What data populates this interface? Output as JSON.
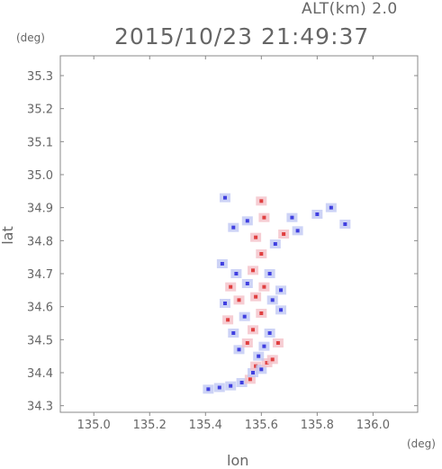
{
  "header": {
    "altitude_label": "ALT(km) 2.0",
    "timestamp": "2015/10/23 21:49:37"
  },
  "chart_data": {
    "type": "heatmap",
    "title": "2015/10/23 21:49:37",
    "subtitle": "ALT(km) 2.0",
    "xlabel": "lon",
    "ylabel": "lat",
    "x_unit": "(deg)",
    "y_unit": "(deg)",
    "xlim": [
      134.88,
      136.16
    ],
    "ylim": [
      34.28,
      35.36
    ],
    "x_ticks": [
      "135.0",
      "135.2",
      "135.4",
      "135.6",
      "135.8",
      "136.0"
    ],
    "y_ticks": [
      "34.3",
      "34.4",
      "34.5",
      "34.6",
      "34.7",
      "34.8",
      "34.9",
      "35.0",
      "35.1",
      "35.2",
      "35.3"
    ],
    "grid": false,
    "colors": {
      "positive": "#e04040",
      "negative": "#4040e0",
      "faint_positive": "#f4c0c8",
      "faint_negative": "#c0c8f4"
    },
    "cells": [
      {
        "lon": 135.41,
        "lat": 34.35,
        "v": -1
      },
      {
        "lon": 135.45,
        "lat": 34.355,
        "v": -1
      },
      {
        "lon": 135.49,
        "lat": 34.36,
        "v": -1
      },
      {
        "lon": 135.53,
        "lat": 34.37,
        "v": -1
      },
      {
        "lon": 135.56,
        "lat": 34.38,
        "v": 1
      },
      {
        "lon": 135.57,
        "lat": 34.4,
        "v": -1
      },
      {
        "lon": 135.58,
        "lat": 34.42,
        "v": 1
      },
      {
        "lon": 135.6,
        "lat": 34.41,
        "v": -1
      },
      {
        "lon": 135.62,
        "lat": 34.43,
        "v": 1
      },
      {
        "lon": 135.59,
        "lat": 34.45,
        "v": -1
      },
      {
        "lon": 135.64,
        "lat": 34.44,
        "v": 1
      },
      {
        "lon": 135.52,
        "lat": 34.47,
        "v": -1
      },
      {
        "lon": 135.55,
        "lat": 34.49,
        "v": 1
      },
      {
        "lon": 135.61,
        "lat": 34.48,
        "v": -1
      },
      {
        "lon": 135.66,
        "lat": 34.49,
        "v": 1
      },
      {
        "lon": 135.5,
        "lat": 34.52,
        "v": -1
      },
      {
        "lon": 135.57,
        "lat": 34.53,
        "v": 1
      },
      {
        "lon": 135.63,
        "lat": 34.52,
        "v": -1
      },
      {
        "lon": 135.48,
        "lat": 34.56,
        "v": 1
      },
      {
        "lon": 135.54,
        "lat": 34.57,
        "v": -1
      },
      {
        "lon": 135.6,
        "lat": 34.58,
        "v": 1
      },
      {
        "lon": 135.67,
        "lat": 34.59,
        "v": -1
      },
      {
        "lon": 135.47,
        "lat": 34.61,
        "v": -1
      },
      {
        "lon": 135.52,
        "lat": 34.62,
        "v": 1
      },
      {
        "lon": 135.58,
        "lat": 34.63,
        "v": 1
      },
      {
        "lon": 135.64,
        "lat": 34.62,
        "v": -1
      },
      {
        "lon": 135.49,
        "lat": 34.66,
        "v": 1
      },
      {
        "lon": 135.55,
        "lat": 34.67,
        "v": -1
      },
      {
        "lon": 135.61,
        "lat": 34.66,
        "v": 1
      },
      {
        "lon": 135.67,
        "lat": 34.65,
        "v": -1
      },
      {
        "lon": 135.51,
        "lat": 34.7,
        "v": -1
      },
      {
        "lon": 135.57,
        "lat": 34.71,
        "v": 1
      },
      {
        "lon": 135.63,
        "lat": 34.7,
        "v": -1
      },
      {
        "lon": 135.46,
        "lat": 34.73,
        "v": -1
      },
      {
        "lon": 135.6,
        "lat": 34.76,
        "v": 1
      },
      {
        "lon": 135.65,
        "lat": 34.79,
        "v": -1
      },
      {
        "lon": 135.58,
        "lat": 34.81,
        "v": 1
      },
      {
        "lon": 135.68,
        "lat": 34.82,
        "v": 1
      },
      {
        "lon": 135.73,
        "lat": 34.83,
        "v": -1
      },
      {
        "lon": 135.5,
        "lat": 34.84,
        "v": -1
      },
      {
        "lon": 135.55,
        "lat": 34.86,
        "v": -1
      },
      {
        "lon": 135.61,
        "lat": 34.87,
        "v": 1
      },
      {
        "lon": 135.71,
        "lat": 34.87,
        "v": -1
      },
      {
        "lon": 135.8,
        "lat": 34.88,
        "v": -1
      },
      {
        "lon": 135.85,
        "lat": 34.9,
        "v": -1
      },
      {
        "lon": 135.6,
        "lat": 34.92,
        "v": 1
      },
      {
        "lon": 135.47,
        "lat": 34.93,
        "v": -1
      },
      {
        "lon": 135.9,
        "lat": 34.85,
        "v": -1
      }
    ]
  }
}
